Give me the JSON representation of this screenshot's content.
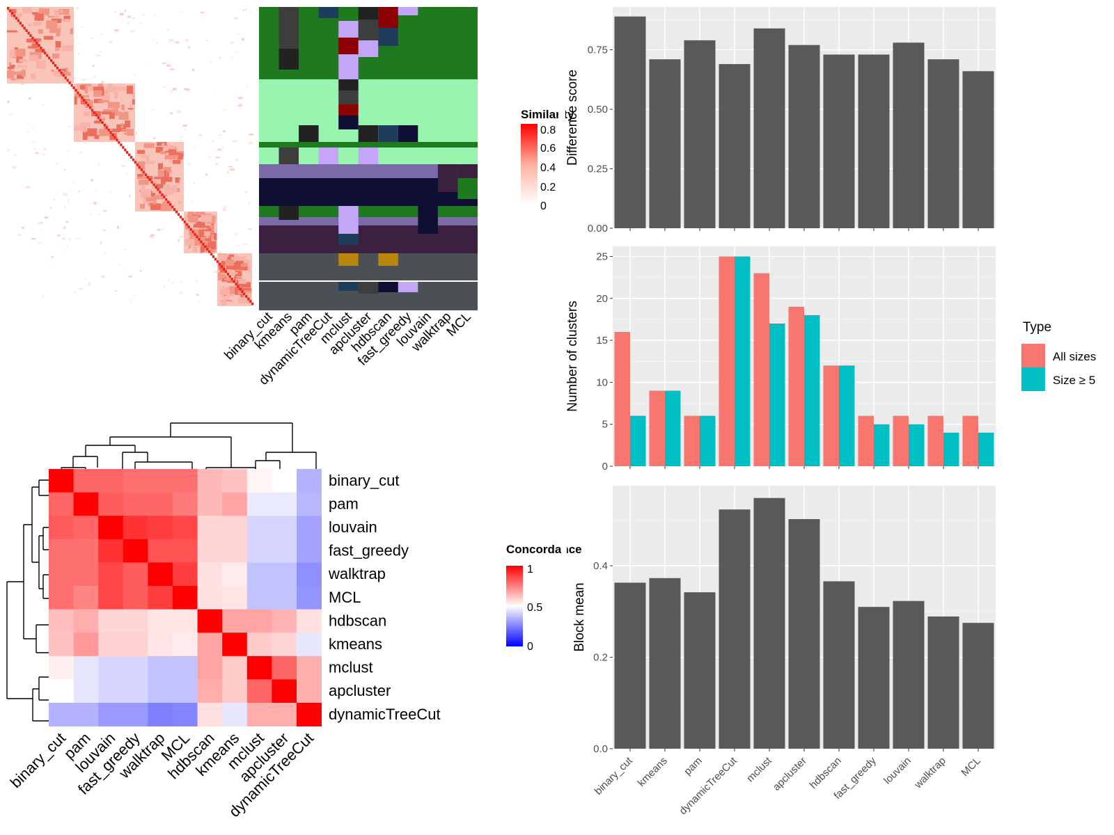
{
  "colors": {
    "panel_bg": "#ebebeb",
    "bar_dark": "#595959",
    "all_sizes": "#f8766d",
    "size_ge5": "#00bfc4",
    "heat_red": "#ff0000",
    "heat_blue": "#0000ff"
  },
  "similarity": {
    "legend_title": "Similarity",
    "legend_ticks": [
      "0.8",
      "0.6",
      "0.4",
      "0.2",
      "0"
    ],
    "method_labels": [
      "binary_cut",
      "kmeans",
      "pam",
      "dynamicTreeCut",
      "mclust",
      "apcluster",
      "hdbscan",
      "fast_greedy",
      "louvain",
      "walktrap",
      "MCL"
    ],
    "column_colors": [
      "#1f7a1f",
      "#98f5b0",
      "#222222",
      "#3d3d3d",
      "#0f0f33",
      "#7a6aa6",
      "#3b2040",
      "#4b5054",
      "#c3a6f7",
      "#1e3d5c",
      "#b8860b",
      "#8b0000"
    ]
  },
  "concordance": {
    "legend_title": "Concordance",
    "legend_ticks": [
      "1",
      "0.5",
      "0"
    ],
    "row_labels": [
      "binary_cut",
      "pam",
      "louvain",
      "fast_greedy",
      "walktrap",
      "MCL",
      "hdbscan",
      "kmeans",
      "mclust",
      "apcluster",
      "dynamicTreeCut"
    ],
    "col_labels": [
      "binary_cut",
      "pam",
      "louvain",
      "fast_greedy",
      "walktrap",
      "MCL",
      "hdbscan",
      "kmeans",
      "mclust",
      "apcluster",
      "dynamicTreeCut"
    ],
    "matrix": [
      [
        1.0,
        0.8,
        0.8,
        0.78,
        0.78,
        0.78,
        0.64,
        0.62,
        0.52,
        0.5,
        0.35
      ],
      [
        0.8,
        1.0,
        0.82,
        0.8,
        0.8,
        0.76,
        0.64,
        0.68,
        0.46,
        0.46,
        0.36
      ],
      [
        0.82,
        0.8,
        1.0,
        0.9,
        0.88,
        0.86,
        0.58,
        0.58,
        0.42,
        0.42,
        0.32
      ],
      [
        0.78,
        0.78,
        0.9,
        1.0,
        0.84,
        0.84,
        0.58,
        0.58,
        0.42,
        0.42,
        0.32
      ],
      [
        0.78,
        0.78,
        0.86,
        0.82,
        1.0,
        0.88,
        0.56,
        0.54,
        0.38,
        0.38,
        0.28
      ],
      [
        0.78,
        0.74,
        0.86,
        0.82,
        0.88,
        1.0,
        0.56,
        0.55,
        0.38,
        0.38,
        0.29
      ],
      [
        0.63,
        0.66,
        0.58,
        0.58,
        0.55,
        0.55,
        1.0,
        0.68,
        0.68,
        0.65,
        0.56
      ],
      [
        0.62,
        0.7,
        0.59,
        0.59,
        0.55,
        0.54,
        0.68,
        1.0,
        0.6,
        0.58,
        0.45
      ],
      [
        0.53,
        0.45,
        0.42,
        0.42,
        0.38,
        0.38,
        0.68,
        0.6,
        1.0,
        0.8,
        0.66
      ],
      [
        0.5,
        0.45,
        0.42,
        0.42,
        0.38,
        0.38,
        0.66,
        0.6,
        0.8,
        1.0,
        0.66
      ],
      [
        0.35,
        0.35,
        0.3,
        0.3,
        0.25,
        0.26,
        0.56,
        0.45,
        0.66,
        0.66,
        1.0
      ]
    ]
  },
  "chart_data": [
    {
      "type": "bar",
      "title": "",
      "xlabel": "",
      "ylabel": "Difference score",
      "categories": [
        "binary_cut",
        "kmeans",
        "pam",
        "dynamicTreeCut",
        "mclust",
        "apcluster",
        "hdbscan",
        "fast_greedy",
        "louvain",
        "walktrap",
        "MCL"
      ],
      "values": [
        0.89,
        0.71,
        0.79,
        0.69,
        0.84,
        0.77,
        0.73,
        0.73,
        0.78,
        0.71,
        0.66
      ],
      "ylim": [
        0,
        0.93
      ],
      "yticks": [
        "0.00",
        "0.25",
        "0.50",
        "0.75"
      ],
      "grid": true
    },
    {
      "type": "bar",
      "title": "",
      "xlabel": "",
      "ylabel": "Number of clusters",
      "categories": [
        "binary_cut",
        "kmeans",
        "pam",
        "dynamicTreeCut",
        "mclust",
        "apcluster",
        "hdbscan",
        "fast_greedy",
        "louvain",
        "walktrap",
        "MCL"
      ],
      "series": [
        {
          "name": "All sizes",
          "values": [
            16,
            9,
            6,
            25,
            23,
            19,
            12,
            6,
            6,
            6,
            6
          ]
        },
        {
          "name": "Size ≥ 5",
          "values": [
            6,
            9,
            6,
            25,
            17,
            18,
            12,
            5,
            5,
            4,
            4
          ]
        }
      ],
      "legend_title": "Type",
      "legend_position": "right",
      "ylim": [
        0,
        26.2
      ],
      "yticks": [
        "0",
        "5",
        "10",
        "15",
        "20",
        "25"
      ],
      "grid": true
    },
    {
      "type": "bar",
      "title": "",
      "xlabel": "",
      "ylabel": "Block mean",
      "categories": [
        "binary_cut",
        "kmeans",
        "pam",
        "dynamicTreeCut",
        "mclust",
        "apcluster",
        "hdbscan",
        "fast_greedy",
        "louvain",
        "walktrap",
        "MCL"
      ],
      "values": [
        0.363,
        0.373,
        0.342,
        0.523,
        0.548,
        0.502,
        0.366,
        0.31,
        0.323,
        0.289,
        0.275
      ],
      "ylim": [
        0,
        0.575
      ],
      "yticks": [
        "0.0",
        "0.2",
        "0.4"
      ],
      "grid": true
    }
  ]
}
